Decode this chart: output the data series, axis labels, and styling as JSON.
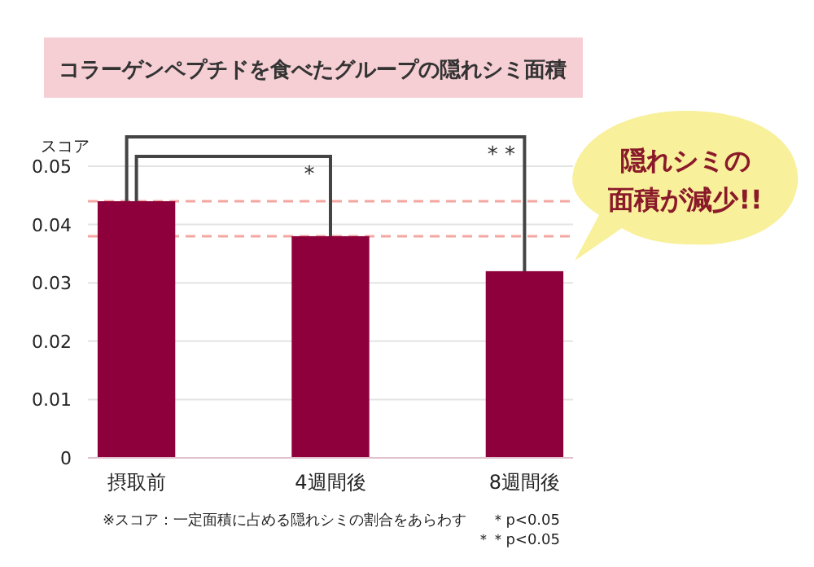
{
  "chart_data": {
    "type": "bar",
    "title": "コラーゲンペプチドを食べたグループの隠れシミ面積",
    "ylabel": "スコア",
    "categories": [
      "摂取前",
      "4週間後",
      "8週間後"
    ],
    "values": [
      0.044,
      0.038,
      0.032
    ],
    "color": "#8e003b",
    "ylim": [
      0,
      0.05
    ],
    "yticks": [
      0,
      0.01,
      0.02,
      0.03,
      0.04,
      0.05
    ],
    "grid": "y",
    "ref_lines": [
      {
        "axis": "y",
        "value": 0.044,
        "color": "#f4a6a0",
        "line_style": "dashed"
      },
      {
        "axis": "y",
        "value": 0.038,
        "color": "#f4a6a0",
        "line_style": "dashed"
      }
    ],
    "annotations": [
      "*",
      "* *",
      "隠れシミの",
      "面積が減少!!",
      "※スコア：一定面積に占める隠れシミの割合をあらわす",
      "＊p<0.05",
      "＊＊p<0.05"
    ]
  }
}
